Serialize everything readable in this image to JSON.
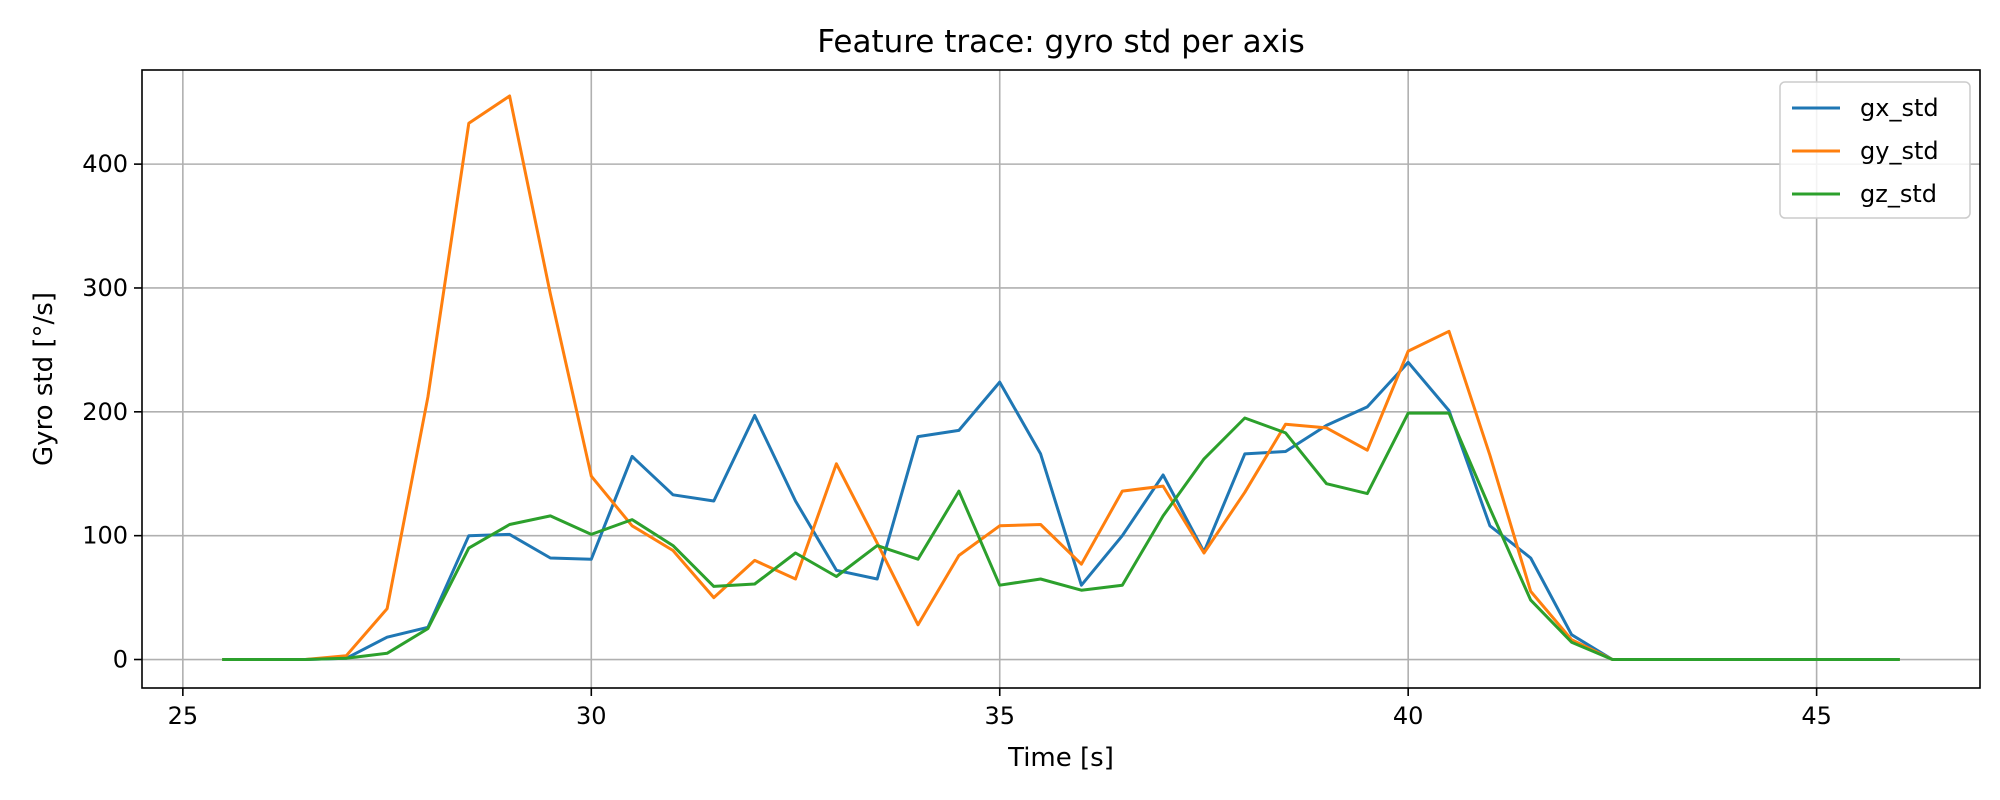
{
  "chart_data": {
    "type": "line",
    "title": "Feature trace: gyro std per axis",
    "xlabel": "Time [s]",
    "ylabel": "Gyro std [°/s]",
    "xlim": [
      24.5,
      47.0
    ],
    "ylim": [
      -23,
      476
    ],
    "xticks": [
      25,
      30,
      35,
      40,
      45
    ],
    "yticks": [
      0,
      100,
      200,
      300,
      400
    ],
    "grid": true,
    "legend_position": "top-right",
    "x": [
      25.5,
      26.0,
      26.5,
      27.0,
      27.5,
      28.0,
      28.5,
      29.0,
      29.5,
      30.0,
      30.5,
      31.0,
      31.5,
      32.0,
      32.5,
      33.0,
      33.5,
      34.0,
      34.5,
      35.0,
      35.5,
      36.0,
      36.5,
      37.0,
      37.5,
      38.0,
      38.5,
      39.0,
      39.5,
      40.0,
      40.5,
      41.0,
      41.5,
      42.0,
      42.5,
      43.0,
      43.5,
      44.0,
      44.5,
      45.0,
      45.5,
      46.0
    ],
    "series": [
      {
        "name": "gx_std",
        "color": "#1f77b4",
        "values": [
          0,
          0,
          0,
          1,
          18,
          26,
          100,
          101,
          82,
          81,
          164,
          133,
          128,
          197,
          128,
          72,
          65,
          180,
          185,
          224,
          166,
          60,
          100,
          149,
          87,
          166,
          168,
          189,
          204,
          240,
          201,
          108,
          82,
          20,
          0,
          0,
          0,
          0,
          0,
          0,
          0,
          0
        ]
      },
      {
        "name": "gy_std",
        "color": "#ff7f0e",
        "values": [
          0,
          0,
          0,
          3,
          41,
          212,
          433,
          455,
          295,
          148,
          108,
          88,
          50,
          80,
          65,
          158,
          94,
          28,
          84,
          108,
          109,
          77,
          136,
          140,
          86,
          135,
          190,
          187,
          169,
          249,
          265,
          165,
          55,
          16,
          0,
          0,
          0,
          0,
          0,
          0,
          0,
          0
        ]
      },
      {
        "name": "gz_std",
        "color": "#2ca02c",
        "values": [
          0,
          0,
          0,
          1,
          5,
          25,
          90,
          109,
          116,
          101,
          113,
          92,
          59,
          61,
          86,
          67,
          92,
          81,
          136,
          60,
          65,
          56,
          60,
          116,
          162,
          195,
          183,
          142,
          134,
          199,
          199,
          122,
          48,
          14,
          0,
          0,
          0,
          0,
          0,
          0,
          0,
          0
        ]
      }
    ]
  }
}
